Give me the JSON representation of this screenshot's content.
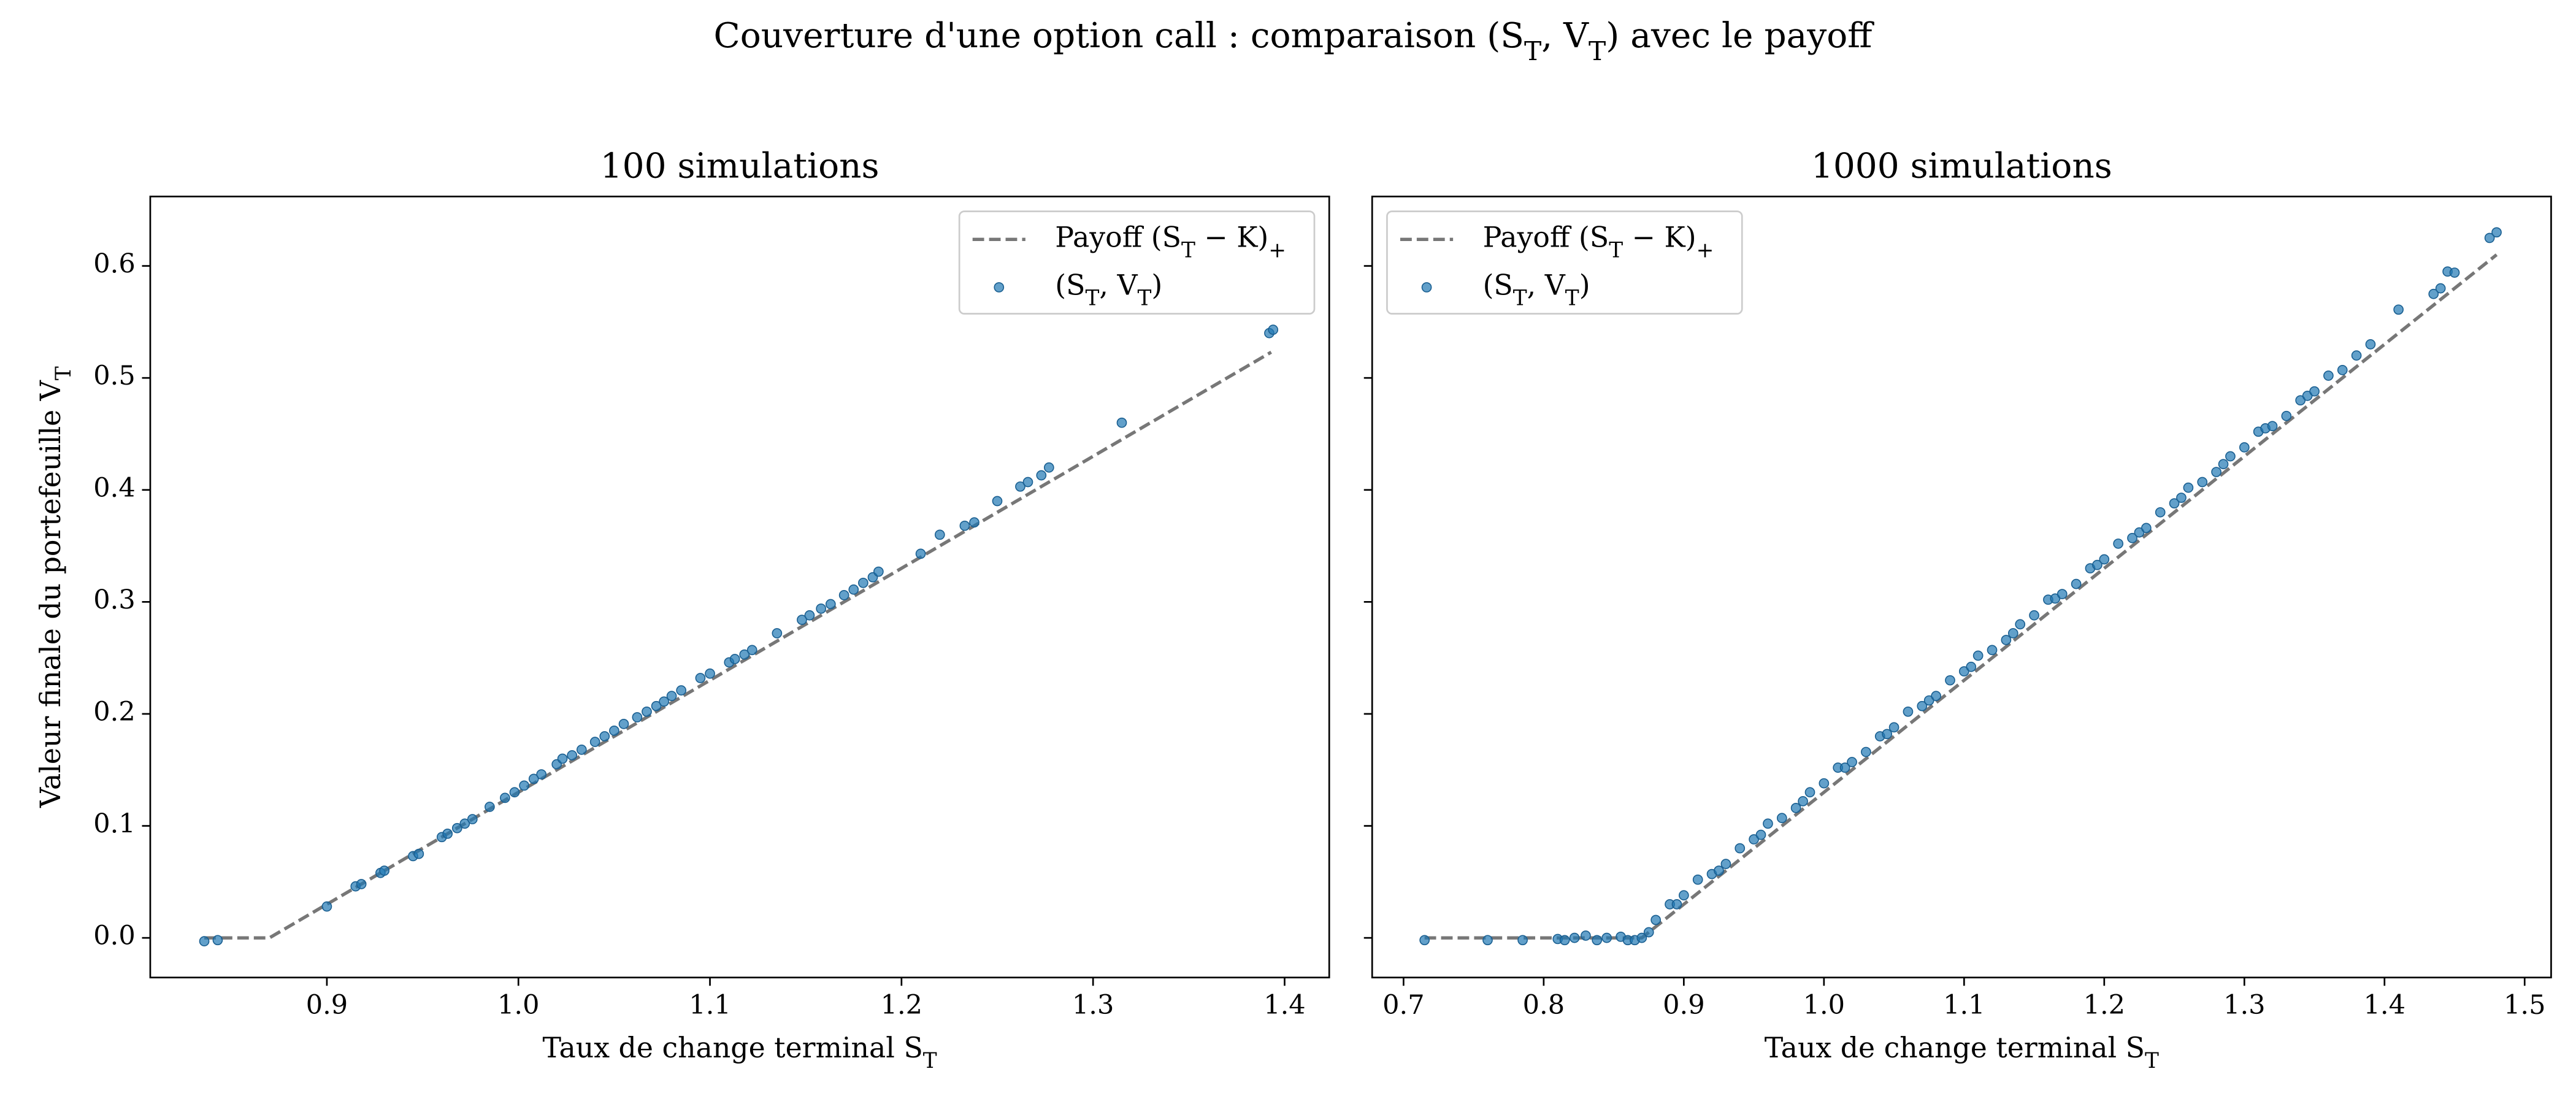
{
  "title": "Couverture d'une option call : comparaison (S_T, V_T) avec le payoff",
  "chart_data": [
    {
      "type": "scatter",
      "title": "100 simulations",
      "xlabel": "Taux de change terminal S_T",
      "ylabel": "Valeur finale du portefeuille V_T",
      "xlim": [
        0.8078,
        1.4233
      ],
      "ylim": [
        -0.0354,
        0.662
      ],
      "xticks": [
        0.9,
        {
          "value": 1,
          "label": "1.0"
        },
        1.1,
        1.2,
        1.3,
        1.4
      ],
      "yticks": [
        {
          "value": 0,
          "label": "0.0"
        },
        0.1,
        0.2,
        0.3,
        0.4,
        0.5,
        0.6
      ],
      "show_ytick_labels": true,
      "legend": "upper right",
      "series": [
        {
          "name": "Payoff (S_T − K)_+",
          "type": "line",
          "dashed": true,
          "color": "#777777",
          "x": [
            0.836,
            0.87,
            1.393
          ],
          "values": [
            0,
            0,
            0.523
          ]
        },
        {
          "name": "(S_T, V_T)",
          "type": "scatter",
          "color": "#1f77b4",
          "x": [
            0.836,
            0.843,
            0.9,
            0.915,
            0.918,
            0.928,
            0.93,
            0.945,
            0.948,
            0.96,
            0.963,
            0.968,
            0.972,
            0.976,
            0.985,
            0.993,
            0.998,
            1.003,
            1.008,
            1.012,
            1.02,
            1.023,
            1.028,
            1.033,
            1.04,
            1.045,
            1.05,
            1.055,
            1.062,
            1.067,
            1.072,
            1.076,
            1.08,
            1.085,
            1.095,
            1.1,
            1.11,
            1.113,
            1.118,
            1.122,
            1.135,
            1.148,
            1.152,
            1.158,
            1.163,
            1.17,
            1.175,
            1.18,
            1.185,
            1.188,
            1.21,
            1.22,
            1.233,
            1.238,
            1.25,
            1.262,
            1.266,
            1.273,
            1.277,
            1.315,
            1.392,
            1.394
          ],
          "values": [
            -0.003,
            -0.002,
            0.028,
            0.046,
            0.048,
            0.058,
            0.06,
            0.073,
            0.075,
            0.09,
            0.093,
            0.098,
            0.102,
            0.106,
            0.117,
            0.125,
            0.13,
            0.136,
            0.142,
            0.146,
            0.155,
            0.16,
            0.163,
            0.168,
            0.175,
            0.18,
            0.185,
            0.191,
            0.197,
            0.202,
            0.207,
            0.211,
            0.216,
            0.221,
            0.232,
            0.236,
            0.246,
            0.249,
            0.253,
            0.257,
            0.272,
            0.284,
            0.288,
            0.294,
            0.298,
            0.306,
            0.311,
            0.317,
            0.322,
            0.327,
            0.343,
            0.36,
            0.368,
            0.371,
            0.39,
            0.403,
            0.407,
            0.413,
            0.42,
            0.46,
            0.54,
            0.543
          ]
        }
      ]
    },
    {
      "type": "scatter",
      "title": "1000 simulations",
      "xlabel": "Taux de change terminal S_T",
      "xlim": [
        0.6776,
        1.5189
      ],
      "ylim": [
        -0.0354,
        0.662
      ],
      "xticks": [
        0.7,
        0.8,
        0.9,
        {
          "value": 1,
          "label": "1.0"
        },
        1.1,
        1.2,
        1.3,
        1.4,
        1.5
      ],
      "yticks": [
        0,
        0.1,
        0.2,
        0.3,
        0.4,
        0.5,
        0.6
      ],
      "show_ytick_labels": false,
      "legend": "upper left",
      "series": [
        {
          "name": "Payoff (S_T − K)_+",
          "type": "line",
          "dashed": true,
          "color": "#777777",
          "x": [
            0.715,
            0.87,
            1.48
          ],
          "values": [
            0,
            0,
            0.61
          ]
        },
        {
          "name": "(S_T, V_T)",
          "type": "scatter",
          "color": "#1f77b4",
          "x": [
            0.715,
            0.76,
            0.785,
            0.81,
            0.815,
            0.822,
            0.83,
            0.838,
            0.845,
            0.855,
            0.86,
            0.865,
            0.87,
            0.875,
            0.88,
            0.89,
            0.895,
            0.9,
            0.91,
            0.92,
            0.925,
            0.93,
            0.94,
            0.95,
            0.955,
            0.96,
            0.97,
            0.98,
            0.985,
            0.99,
            1.0,
            1.01,
            1.015,
            1.02,
            1.03,
            1.04,
            1.045,
            1.05,
            1.06,
            1.07,
            1.075,
            1.08,
            1.09,
            1.1,
            1.105,
            1.11,
            1.12,
            1.13,
            1.135,
            1.14,
            1.15,
            1.16,
            1.165,
            1.17,
            1.18,
            1.19,
            1.195,
            1.2,
            1.21,
            1.22,
            1.225,
            1.23,
            1.24,
            1.25,
            1.255,
            1.26,
            1.27,
            1.28,
            1.285,
            1.29,
            1.3,
            1.31,
            1.315,
            1.32,
            1.33,
            1.34,
            1.345,
            1.35,
            1.36,
            1.37,
            1.38,
            1.39,
            1.41,
            1.435,
            1.44,
            1.445,
            1.45,
            1.475,
            1.48
          ],
          "values": [
            -0.002,
            -0.002,
            -0.002,
            -0.001,
            -0.002,
            0,
            0.002,
            -0.002,
            0,
            0.001,
            -0.002,
            -0.002,
            0,
            0.005,
            0.016,
            0.03,
            0.03,
            0.038,
            0.052,
            0.057,
            0.06,
            0.066,
            0.08,
            0.088,
            0.092,
            0.102,
            0.107,
            0.116,
            0.122,
            0.13,
            0.138,
            0.152,
            0.152,
            0.157,
            0.166,
            0.18,
            0.182,
            0.188,
            0.202,
            0.207,
            0.212,
            0.216,
            0.23,
            0.238,
            0.242,
            0.252,
            0.257,
            0.266,
            0.272,
            0.28,
            0.288,
            0.302,
            0.303,
            0.307,
            0.316,
            0.33,
            0.333,
            0.338,
            0.352,
            0.357,
            0.362,
            0.366,
            0.38,
            0.388,
            0.393,
            0.402,
            0.407,
            0.416,
            0.423,
            0.43,
            0.438,
            0.452,
            0.455,
            0.457,
            0.466,
            0.48,
            0.484,
            0.488,
            0.502,
            0.507,
            0.52,
            0.53,
            0.561,
            0.575,
            0.58,
            0.595,
            0.594,
            0.625,
            0.63
          ]
        }
      ]
    }
  ]
}
